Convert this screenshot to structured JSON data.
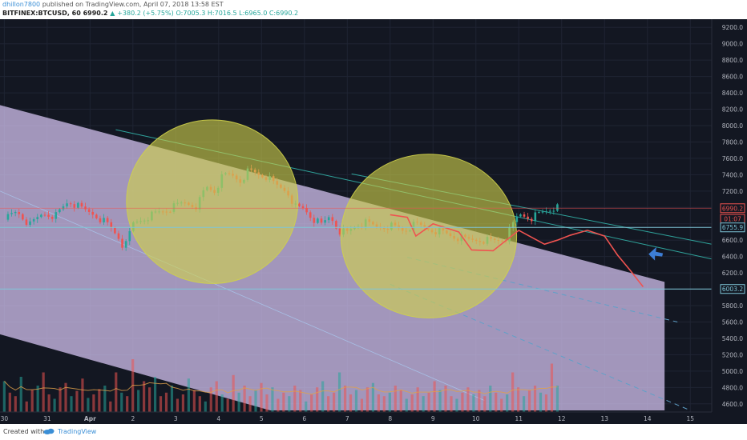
{
  "header": {
    "author": "dhillon7800",
    "published": "published on TradingView.com, April 07, 2018 13:58 EST",
    "symbol": "BITFINEX:BTCUSD, 60",
    "last": "6990.2",
    "change": "+380.2 (+5.75%)",
    "ohlc": "O:7005.3 H:7016.5 L:6965.0 C:6990.2"
  },
  "footer": {
    "created": "Created with",
    "brand": "TradingView"
  },
  "colors": {
    "background": "#131722",
    "grid": "#1f2433",
    "channel_fill": "#d9c7f7",
    "up": "#26a69a",
    "down": "#ef5350",
    "circle": "#cfd04a",
    "projection": "#ef5350",
    "arrow": "#3d7ed6",
    "hline": "#7fc6d8",
    "trend_teal": "#2fa39b"
  },
  "chart_data": {
    "type": "candlestick",
    "symbol": "BTCUSD",
    "exchange": "BITFINEX",
    "interval": "60",
    "y_range": [
      4500,
      9300
    ],
    "y_ticks": [
      4600,
      4800,
      5000,
      5200,
      5400,
      5600,
      5800,
      6000,
      6200,
      6400,
      6600,
      6800,
      7000,
      7200,
      7400,
      7600,
      7800,
      8000,
      8200,
      8400,
      8600,
      8800,
      9000,
      9200
    ],
    "y_tick_labels": [
      "4600.0",
      "4800.0",
      "5000.0",
      "5200.0",
      "5400.0",
      "5600.0",
      "5800.0",
      "6000.0",
      "6200.0",
      "6400.0",
      "6600.0",
      "6800.0",
      "7000.0",
      "7200.0",
      "7400.0",
      "7600.0",
      "7800.0",
      "8000.0",
      "8200.0",
      "8400.0",
      "8600.0",
      "8800.0",
      "9000.0",
      "9200.0"
    ],
    "x_range": [
      -0.1,
      16.5
    ],
    "x_ticks": [
      0,
      1,
      2,
      3,
      4,
      5,
      6,
      7,
      8,
      9,
      10,
      11,
      12,
      13,
      14,
      15,
      16
    ],
    "x_tick_labels": [
      "30",
      "31",
      "Apr",
      "2",
      "3",
      "4",
      "5",
      "6",
      "7",
      "8",
      "9",
      "10",
      "11",
      "12",
      "13",
      "14",
      "15"
    ],
    "price_labels": [
      {
        "text": "6990.2",
        "value": 6990.2,
        "color": "#ef5350"
      },
      {
        "text": "01:07",
        "value": 6880,
        "color": "#ef5350"
      },
      {
        "text": "6755.9",
        "value": 6755.9,
        "color": "#7fc6d8"
      },
      {
        "text": "6003.2",
        "value": 6003.2,
        "color": "#7fc6d8"
      }
    ],
    "horizontal_lines": [
      6990.2,
      6755.9,
      6003.2
    ],
    "price_path": [
      [
        0,
        6850
      ],
      [
        0.3,
        6950
      ],
      [
        0.6,
        6780
      ],
      [
        0.9,
        6930
      ],
      [
        1.2,
        6900
      ],
      [
        1.5,
        7080
      ],
      [
        1.8,
        6980
      ],
      [
        2.1,
        6920
      ],
      [
        2.4,
        6800
      ],
      [
        2.7,
        6620
      ],
      [
        2.8,
        6480
      ],
      [
        3.0,
        6800
      ],
      [
        3.3,
        6880
      ],
      [
        3.6,
        6940
      ],
      [
        3.9,
        6990
      ],
      [
        4.2,
        7060
      ],
      [
        4.5,
        7020
      ],
      [
        4.7,
        7250
      ],
      [
        4.9,
        7200
      ],
      [
        5.1,
        7380
      ],
      [
        5.3,
        7400
      ],
      [
        5.5,
        7330
      ],
      [
        5.7,
        7450
      ],
      [
        5.9,
        7410
      ],
      [
        6.1,
        7380
      ],
      [
        6.3,
        7280
      ],
      [
        6.6,
        7200
      ],
      [
        6.8,
        7000
      ],
      [
        7.0,
        6980
      ],
      [
        7.2,
        6860
      ],
      [
        7.4,
        6780
      ],
      [
        7.6,
        6900
      ],
      [
        7.8,
        6720
      ],
      [
        8.0,
        6690
      ],
      [
        8.2,
        6780
      ],
      [
        8.4,
        6810
      ],
      [
        8.7,
        6760
      ],
      [
        9.0,
        6780
      ],
      [
        9.3,
        6720
      ],
      [
        9.6,
        6790
      ],
      [
        9.9,
        6740
      ],
      [
        10.2,
        6700
      ],
      [
        10.5,
        6640
      ],
      [
        10.8,
        6600
      ],
      [
        11.1,
        6610
      ],
      [
        11.4,
        6590
      ],
      [
        11.7,
        6620
      ],
      [
        12.0,
        6920
      ],
      [
        12.3,
        6880
      ],
      [
        12.6,
        6950
      ],
      [
        12.8,
        7000
      ],
      [
        12.9,
        6990
      ]
    ],
    "volume_range": [
      0,
      100
    ],
    "volumes": [
      35,
      22,
      18,
      40,
      12,
      25,
      30,
      45,
      20,
      15,
      28,
      33,
      18,
      24,
      38,
      16,
      20,
      26,
      30,
      12,
      45,
      22,
      18,
      60,
      25,
      35,
      28,
      40,
      18,
      22,
      30,
      15,
      20,
      38,
      25,
      18,
      12,
      28,
      35,
      20,
      15,
      42,
      22,
      30,
      18,
      25,
      33,
      20,
      28,
      15,
      22,
      18,
      30,
      25,
      12,
      20,
      28,
      35,
      18,
      22,
      45,
      30,
      20,
      25,
      15,
      28,
      33,
      20,
      18,
      22,
      30,
      25,
      15,
      20,
      28,
      18,
      22,
      35,
      25,
      30,
      18,
      15,
      22,
      28,
      20,
      25,
      18,
      30,
      22,
      15,
      20,
      45,
      28,
      18,
      25,
      30,
      22,
      20,
      55,
      30
    ],
    "overlays": {
      "channel": [
        {
          "x": -0.1,
          "y": 8250
        },
        {
          "x": 15.4,
          "y": 6090
        },
        {
          "x": 15.4,
          "y": 4520
        },
        {
          "x": -0.1,
          "y": 4520
        }
      ],
      "dark_triangle": [
        {
          "x": -0.1,
          "y": 5450
        },
        {
          "x": -0.1,
          "y": 4520
        },
        {
          "x": 6.2,
          "y": 4520
        }
      ],
      "lower_line": [
        {
          "x": -0.1,
          "y": 7200
        },
        {
          "x": 11.2,
          "y": 4640
        }
      ],
      "circles": [
        {
          "cx": 4.85,
          "cy": 7070,
          "rx": 2.0,
          "ry": 1000
        },
        {
          "cx": 9.9,
          "cy": 6650,
          "rx": 2.05,
          "ry": 1000
        }
      ],
      "teal_lines": [
        [
          {
            "x": 2.6,
            "y": 7950
          },
          {
            "x": 16.5,
            "y": 6370
          }
        ],
        [
          {
            "x": 8.1,
            "y": 7410
          },
          {
            "x": 16.5,
            "y": 6550
          }
        ]
      ],
      "dashed_lines": [
        [
          {
            "x": 9.4,
            "y": 6390
          },
          {
            "x": 15.7,
            "y": 5600
          }
        ],
        [
          {
            "x": 9.0,
            "y": 6060
          },
          {
            "x": 16.0,
            "y": 4520
          }
        ]
      ],
      "projection": [
        [
          9.0,
          6910
        ],
        [
          9.4,
          6880
        ],
        [
          9.6,
          6650
        ],
        [
          10.0,
          6800
        ],
        [
          10.6,
          6700
        ],
        [
          10.9,
          6480
        ],
        [
          11.4,
          6470
        ],
        [
          12.0,
          6720
        ],
        [
          12.6,
          6550
        ],
        [
          12.9,
          6600
        ],
        [
          13.2,
          6660
        ],
        [
          13.6,
          6720
        ],
        [
          14.0,
          6650
        ],
        [
          14.3,
          6420
        ],
        [
          14.6,
          6230
        ],
        [
          14.9,
          6030
        ]
      ],
      "arrow": {
        "x": 15.25,
        "y": 6430
      }
    }
  }
}
